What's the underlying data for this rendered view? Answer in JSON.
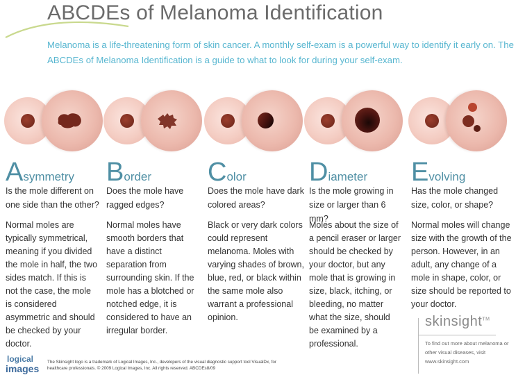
{
  "header": {
    "title": "ABCDEs of Melanoma Identification",
    "intro": "Melanoma is a life-threatening form of skin cancer.  A monthly self-exam is a powerful way to identify it early on. The ABCDEs of Melanoma Identification is a guide to what to look for during your self-exam."
  },
  "sections": [
    {
      "letter": "A",
      "rest": "symmetry",
      "question": "Is the mole different on one side than the other?",
      "body": "Normal moles are typically symmetrical, meaning if you divided the mole in half, the two sides match. If this is not the case, the mole is considered asymmetric and should be checked by your doctor."
    },
    {
      "letter": "B",
      "rest": "order",
      "question": "Does the mole have ragged edges?",
      "body": "Normal moles have smooth borders that have a distinct separation from surrounding skin. If the mole has a blotched or notched edge, it is considered to have an irregular border."
    },
    {
      "letter": "C",
      "rest": "olor",
      "question": "Does the mole have dark colored areas?",
      "body": "Black or very dark colors could represent melanoma. Moles with varying shades of brown, blue, red, or black within the same mole also warrant a professional opinion."
    },
    {
      "letter": "D",
      "rest": "iameter",
      "question": "Is the mole growing in size or larger than 6 mm?",
      "body": "Moles about the size of a pencil eraser or larger should be checked by your doctor, but any mole that is growing in size, black, itching, or bleeding, no matter what the size, should be examined by a professional."
    },
    {
      "letter": "E",
      "rest": "volving",
      "question": "Has the mole changed size, color, or shape?",
      "body": "Normal moles will change size with the growth of the person. However, in an adult, any change of a mole in shape, color, or size should be reported to your doctor."
    }
  ],
  "skinsight": {
    "logo": "skinsight",
    "tm": "TM",
    "text": "To find out more about melanoma or other visual diseases, visit www.skinsight.com"
  },
  "logical_images": {
    "top": "logical",
    "bottom": "images"
  },
  "footer": "The Skinsight logo is a trademark of Logical Images, Inc., developers of the visual diagnostic support tool VisualDx, for healthcare professionals. © 2009 Logical Images, Inc. All rights reserved. ABCDEs8/09",
  "colors": {
    "accent_blue": "#57b6d0",
    "heading_blue": "#4f8fa4",
    "swoosh_green": "#c9d98e",
    "mole_brown": "#7a2e22"
  },
  "icons": [
    "swoosh-decoration",
    "asymmetry-illustration",
    "border-illustration",
    "color-illustration",
    "diameter-illustration",
    "evolving-illustration"
  ]
}
